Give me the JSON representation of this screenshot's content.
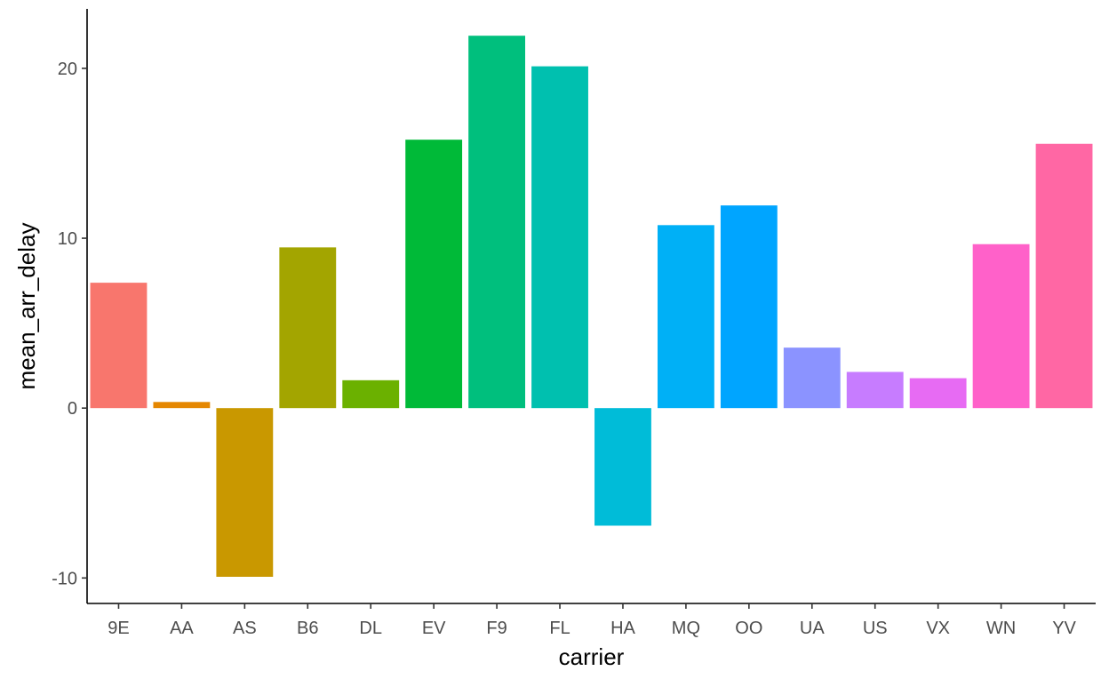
{
  "chart_data": {
    "type": "bar",
    "title": "",
    "xlabel": "carrier",
    "ylabel": "mean_arr_delay",
    "categories": [
      "9E",
      "AA",
      "AS",
      "B6",
      "DL",
      "EV",
      "F9",
      "FL",
      "HA",
      "MQ",
      "OO",
      "UA",
      "US",
      "VX",
      "WN",
      "YV"
    ],
    "values": [
      7.38,
      0.36,
      -9.93,
      9.46,
      1.64,
      15.8,
      21.92,
      20.12,
      -6.92,
      10.77,
      11.93,
      3.56,
      2.13,
      1.76,
      9.65,
      15.56
    ],
    "colors": [
      "#F8766D",
      "#E58700",
      "#C99800",
      "#A3A500",
      "#6BB100",
      "#00BA38",
      "#00BF7D",
      "#00C0AF",
      "#00BCD8",
      "#00B0F6",
      "#00A5FF",
      "#8B93FF",
      "#C77CFF",
      "#E76BF3",
      "#FF61C9",
      "#FF67A4"
    ],
    "yticks": [
      -10,
      0,
      10,
      20
    ],
    "ylim": [
      -11.5,
      23.5
    ],
    "grid": false,
    "legend": "none"
  }
}
